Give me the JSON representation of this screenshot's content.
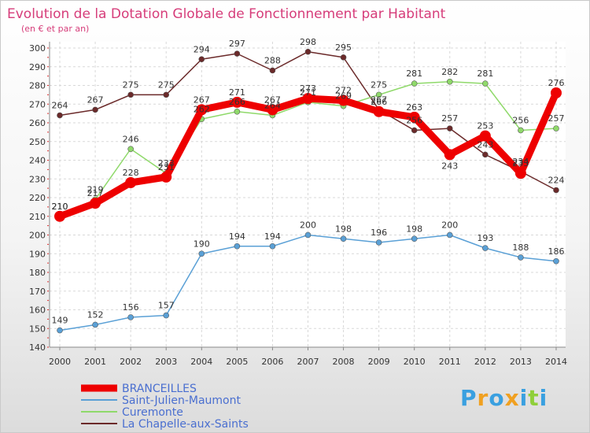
{
  "chart_data": {
    "type": "line",
    "title": "Evolution de la Dotation Globale de Fonctionnement par Habitant",
    "subtitle": "(en € et par an)",
    "categories": [
      "2000",
      "2001",
      "2002",
      "2003",
      "2004",
      "2005",
      "2006",
      "2007",
      "2008",
      "2009",
      "2010",
      "2011",
      "2012",
      "2013",
      "2014"
    ],
    "ylim": [
      140,
      300
    ],
    "yticks": [
      140,
      150,
      160,
      170,
      180,
      190,
      200,
      210,
      220,
      230,
      240,
      250,
      260,
      270,
      280,
      290,
      300
    ],
    "grid": true,
    "legend_position": "bottom-left",
    "series": [
      {
        "name": "BRANCEILLES",
        "color": "#ee0000",
        "values": [
          210,
          217,
          228,
          231,
          267,
          271,
          267,
          273,
          272,
          266,
          263,
          243,
          253,
          233,
          276
        ]
      },
      {
        "name": "Saint-Julien-Maumont",
        "color": "#5aa0d6",
        "values": [
          149,
          152,
          156,
          157,
          190,
          194,
          194,
          200,
          198,
          196,
          198,
          200,
          193,
          188,
          186
        ]
      },
      {
        "name": "Curemonte",
        "color": "#8fd96a",
        "values": [
          210,
          219,
          246,
          233,
          262,
          266,
          264,
          271,
          269,
          275,
          281,
          282,
          281,
          256,
          257
        ]
      },
      {
        "name": "La Chapelle-aux-Saints",
        "color": "#6b2a2a",
        "values": [
          264,
          267,
          275,
          275,
          294,
          297,
          288,
          298,
          295,
          267,
          256,
          257,
          243,
          234,
          224
        ]
      }
    ]
  },
  "branding": {
    "logo_letters": [
      "P",
      "r",
      "o",
      "x",
      "i",
      "t",
      "i"
    ],
    "logo_colors": [
      "#3aa0e0",
      "#f0a020",
      "#3aa0e0",
      "#f0a020",
      "#3aa0e0",
      "#8fcf3a",
      "#3aa0e0"
    ]
  }
}
